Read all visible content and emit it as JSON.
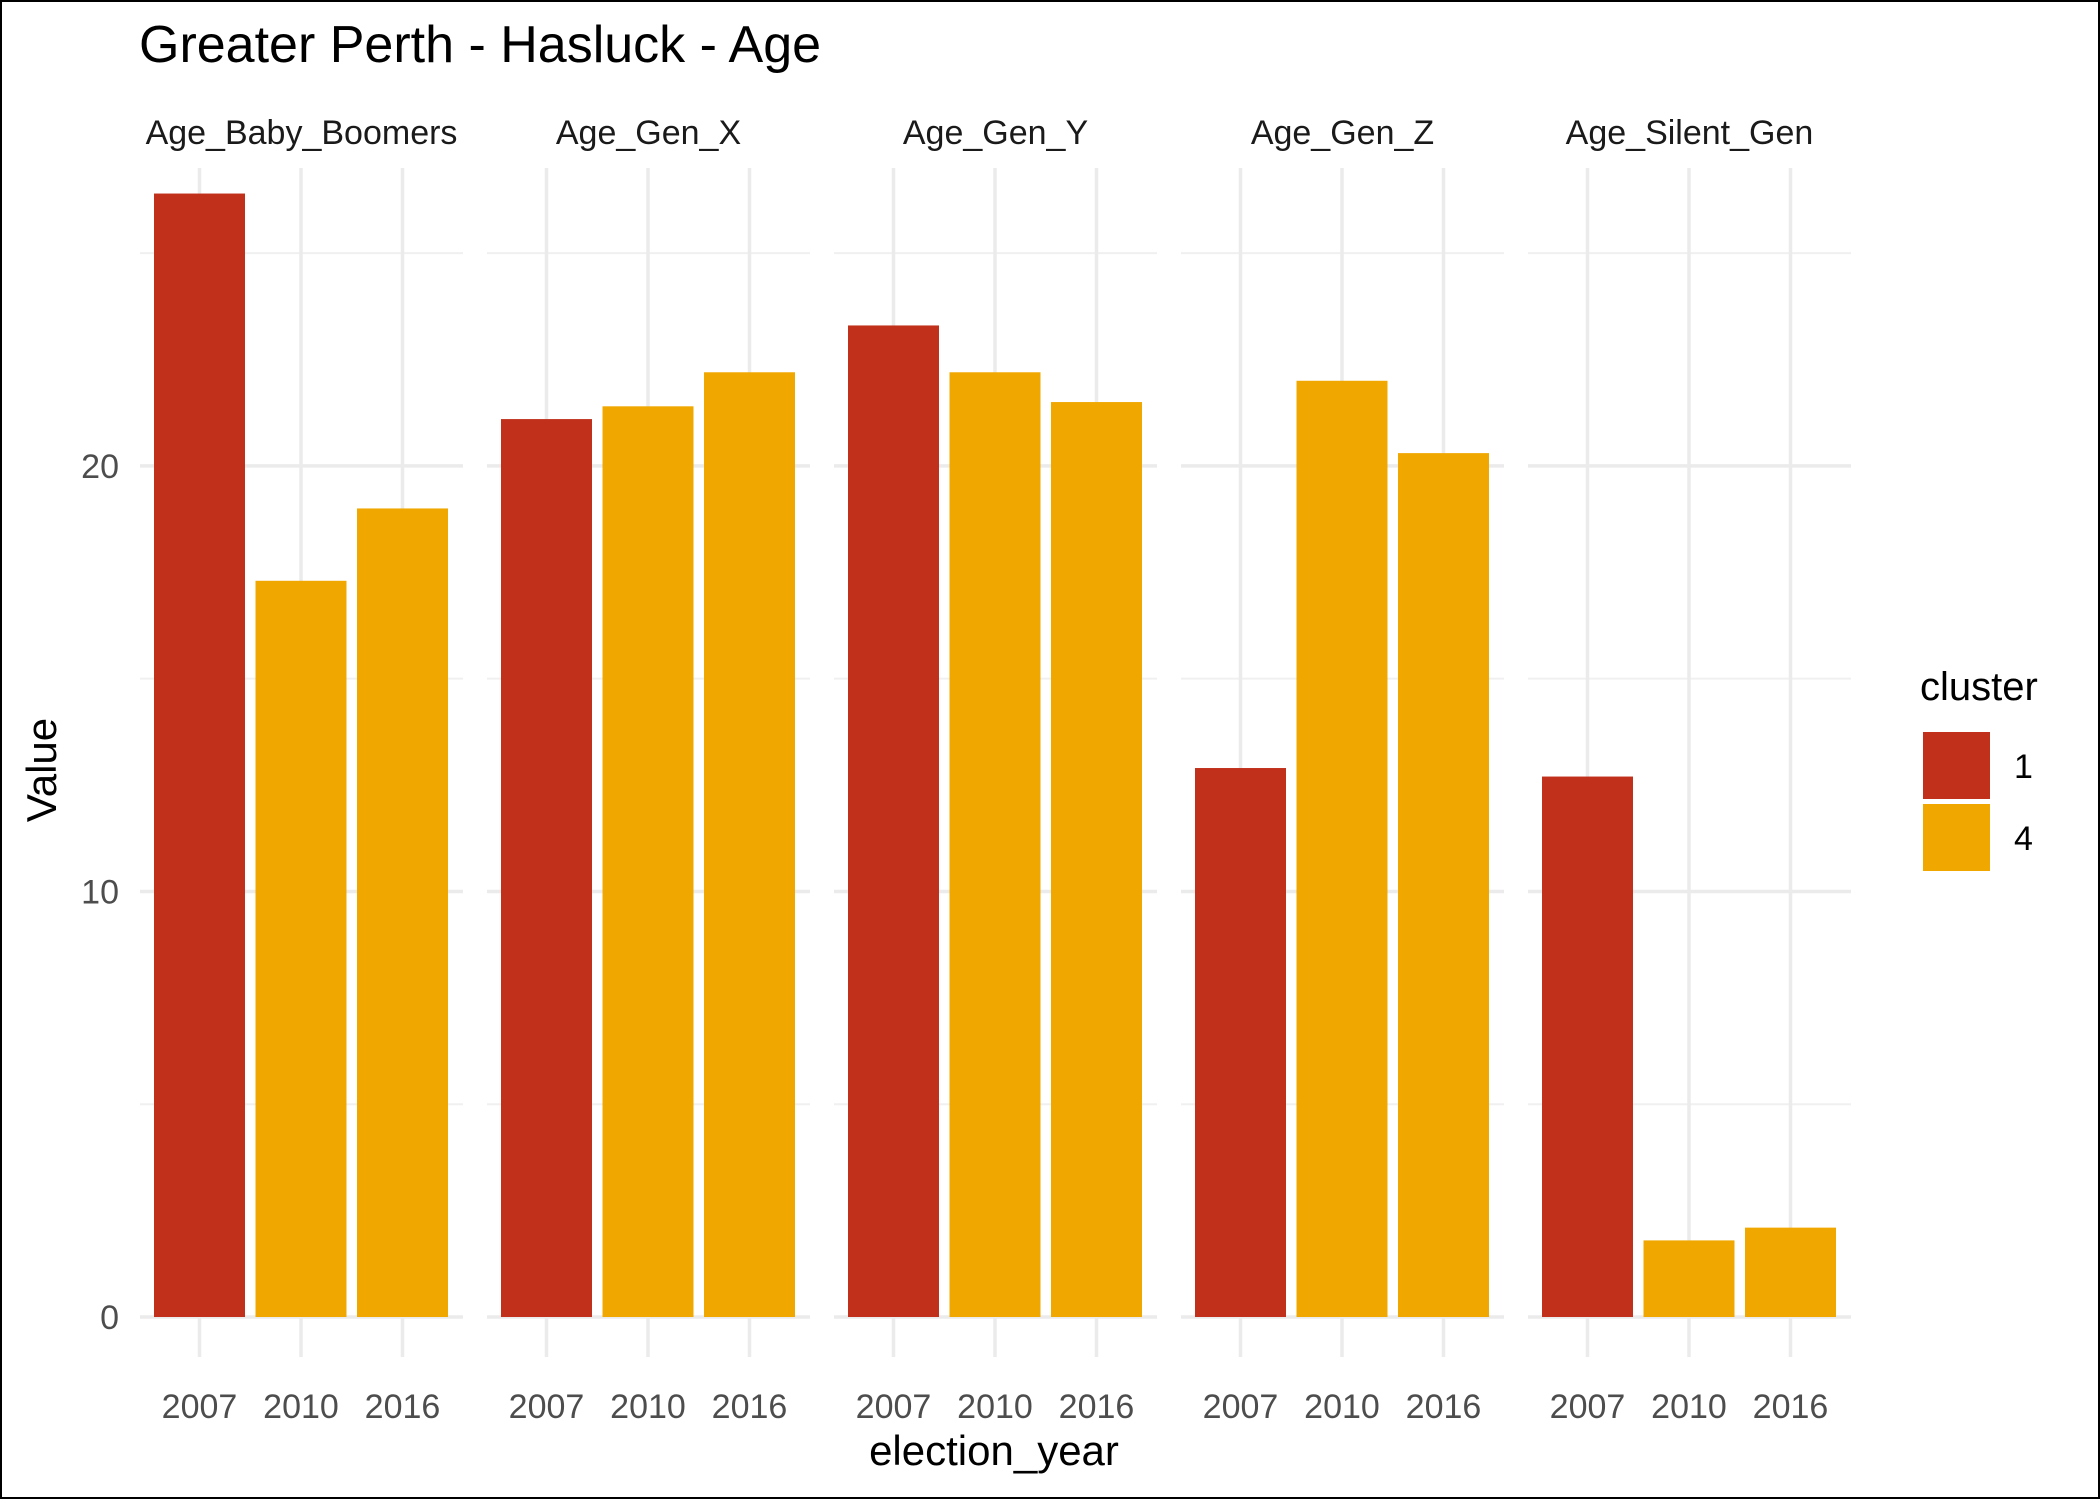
{
  "chart_data": {
    "type": "bar",
    "title": "Greater Perth - Hasluck - Age",
    "xlabel": "election_year",
    "ylabel": "Value",
    "ylim": [
      0,
      27
    ],
    "y_ticks": [
      0,
      10,
      20
    ],
    "categories": [
      "2007",
      "2010",
      "2016"
    ],
    "facets": [
      {
        "name": "Age_Baby_Boomers",
        "values": [
          26.4,
          17.3,
          19.0
        ],
        "clusters": [
          "1",
          "4",
          "4"
        ]
      },
      {
        "name": "Age_Gen_X",
        "values": [
          21.1,
          21.4,
          22.2
        ],
        "clusters": [
          "1",
          "4",
          "4"
        ]
      },
      {
        "name": "Age_Gen_Y",
        "values": [
          23.3,
          22.2,
          21.5
        ],
        "clusters": [
          "1",
          "4",
          "4"
        ]
      },
      {
        "name": "Age_Gen_Z",
        "values": [
          12.9,
          22.0,
          20.3
        ],
        "clusters": [
          "1",
          "4",
          "4"
        ]
      },
      {
        "name": "Age_Silent_Gen",
        "values": [
          12.7,
          1.8,
          2.1
        ],
        "clusters": [
          "1",
          "4",
          "4"
        ]
      }
    ],
    "legend": {
      "title": "cluster",
      "position": "right",
      "items": [
        {
          "label": "1",
          "color": "#C0301A"
        },
        {
          "label": "4",
          "color": "#F0A800"
        }
      ]
    },
    "grid": true
  }
}
